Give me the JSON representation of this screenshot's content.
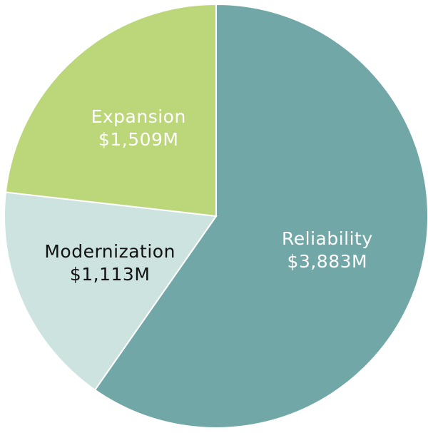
{
  "chart_data": {
    "type": "pie",
    "categories": [
      "Reliability",
      "Modernization",
      "Expansion"
    ],
    "values": [
      3883,
      1113,
      1509
    ],
    "value_labels": [
      "$3,883M",
      "$1,113M",
      "$1,509M"
    ],
    "colors": [
      "#72a7a7",
      "#cde3df",
      "#bcd67a"
    ]
  }
}
